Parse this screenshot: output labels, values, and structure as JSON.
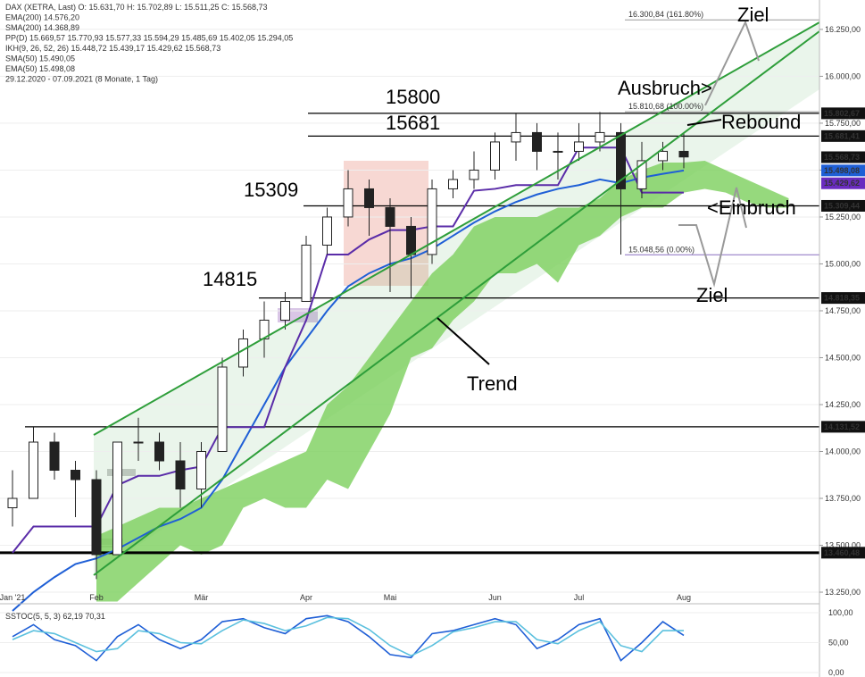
{
  "chart_data": [
    {
      "type": "candlestick",
      "grid": true,
      "header_lines": [
        {
          "text": "DAX (XETRA, Last)  O: 15.631,70  H: 15.702,89  L: 15.511,25  C: 15.568,73",
          "color": "#222"
        },
        {
          "text": "EMA(200)  14.576,20",
          "color": "#e8a0a0"
        },
        {
          "text": "SMA(200)  14.368,89",
          "color": "#e8a0b8"
        },
        {
          "text": "PP(D)  15.669,57  15.770,93  15.577,33  15.594,29  15.485,69  15.402,05  15.294,05",
          "color": "#bbb"
        },
        {
          "text": "IKH(9, 26, 52, 26)  15.448,72  15.439,17  15.429,62  15.568,73",
          "color": "#7a3fb0"
        },
        {
          "text": "SMA(50)  15.490,05",
          "color": "#9cc3e6"
        },
        {
          "text": "EMA(50)  15.498,08",
          "color": "#1f5fd6"
        },
        {
          "text": "29.12.2020 - 07.09.2021 (8 Monate, 1 Tag)",
          "color": "#555"
        }
      ],
      "categories": [
        "Jan '21",
        null,
        null,
        null,
        "Feb",
        null,
        null,
        null,
        null,
        "Mär",
        null,
        null,
        null,
        null,
        "Apr",
        null,
        null,
        null,
        "Mai",
        null,
        null,
        null,
        null,
        "Jun",
        null,
        null,
        null,
        "Jul",
        null,
        null,
        null,
        null,
        "Aug",
        null,
        null,
        null,
        null,
        null,
        null
      ],
      "open": [
        13700,
        13750,
        14050,
        13900,
        13850,
        13450,
        14050,
        14050,
        13950,
        13800,
        14000,
        14450,
        14600,
        14700,
        14800,
        15100,
        15250,
        15400,
        15300,
        15200,
        15050,
        15400,
        15450,
        15500,
        15650,
        15700,
        15600,
        15600,
        15650,
        15700,
        15400,
        15550,
        15600,
        null,
        null,
        null,
        null,
        null,
        null
      ],
      "high": [
        13900,
        14130,
        14100,
        13950,
        13900,
        14050,
        14180,
        14100,
        14050,
        14050,
        14500,
        14650,
        14800,
        14850,
        15150,
        15300,
        15500,
        15450,
        15350,
        15250,
        15450,
        15500,
        15600,
        15700,
        15800,
        15750,
        15700,
        15750,
        15810,
        15750,
        15650,
        15650,
        15700,
        null,
        null,
        null,
        null,
        null,
        null
      ],
      "low": [
        13600,
        13750,
        13850,
        13650,
        13320,
        13450,
        13950,
        13900,
        13700,
        13700,
        14000,
        14400,
        14500,
        14650,
        14800,
        15050,
        15200,
        15150,
        14850,
        14820,
        15000,
        15350,
        15400,
        15450,
        15550,
        15500,
        15450,
        15550,
        15600,
        15050,
        15350,
        15500,
        15510,
        null,
        null,
        null,
        null,
        null,
        null
      ],
      "close": [
        13750,
        14050,
        13900,
        13850,
        13450,
        14050,
        14050,
        13950,
        13800,
        14000,
        14450,
        14600,
        14700,
        14800,
        15100,
        15250,
        15400,
        15300,
        15200,
        15050,
        15400,
        15450,
        15500,
        15650,
        15700,
        15600,
        15600,
        15650,
        15700,
        15400,
        15550,
        15600,
        15570,
        null,
        null,
        null,
        null,
        null,
        null
      ],
      "lines": [
        {
          "color": "#1f5fd6",
          "values": [
            13150,
            13250,
            13330,
            13400,
            13430,
            13480,
            13540,
            13600,
            13640,
            13700,
            13850,
            14050,
            14250,
            14450,
            14600,
            14750,
            14880,
            14950,
            15000,
            15030,
            15080,
            15150,
            15220,
            15280,
            15330,
            15370,
            15400,
            15420,
            15450,
            15430,
            15460,
            15480,
            15498,
            null,
            null,
            null,
            null,
            null,
            null
          ]
        },
        {
          "color": "#5a2ca8",
          "values": [
            13460,
            13600,
            13600,
            13600,
            13600,
            13820,
            13870,
            13870,
            13900,
            13920,
            14130,
            14130,
            14130,
            14450,
            14700,
            15050,
            15050,
            15130,
            15180,
            15180,
            15200,
            15200,
            15390,
            15400,
            15420,
            15420,
            15420,
            15620,
            15620,
            15620,
            15380,
            15380,
            15380,
            null,
            null,
            null,
            null,
            null,
            null
          ]
        }
      ],
      "cloud": {
        "color": "#7ccf5c",
        "upper": [
          null,
          null,
          null,
          null,
          13550,
          13600,
          13650,
          13700,
          13700,
          13750,
          13800,
          13850,
          13900,
          13950,
          14000,
          14250,
          14350,
          14500,
          14650,
          14800,
          14950,
          15050,
          15200,
          15250,
          15250,
          15250,
          15300,
          15300,
          15350,
          15450,
          15500,
          15540,
          15540,
          15550,
          15500,
          15450,
          15400,
          15350,
          null
        ],
        "lower": [
          null,
          null,
          null,
          null,
          13200,
          13200,
          13300,
          13400,
          13500,
          13450,
          13500,
          13700,
          13750,
          13700,
          13700,
          13850,
          13800,
          14000,
          14200,
          14500,
          14550,
          14700,
          14800,
          14950,
          14950,
          15000,
          14900,
          15100,
          15150,
          15250,
          15300,
          15300,
          15380,
          15400,
          15380,
          15330,
          15300,
          15300,
          null
        ]
      },
      "levels": [
        {
          "value": 15802.67,
          "label": "15.802,67"
        },
        {
          "value": 15681.41,
          "label": "15.681,41"
        },
        {
          "value": 15309.44,
          "label": "15.309,44"
        },
        {
          "value": 14818.35,
          "label": "14.818,35"
        },
        {
          "value": 14131.52,
          "label": "14.131,52"
        },
        {
          "value": 13460.48,
          "label": "13.460,48"
        }
      ],
      "price_tags": [
        {
          "value": 15568.73,
          "label": "15.568,73",
          "color": "#111"
        },
        {
          "value": 15498.08,
          "label": "15.498,08",
          "color": "#1f5fd6"
        },
        {
          "value": 15429.62,
          "label": "15.429,62",
          "color": "#6a2cc0"
        }
      ],
      "fib": [
        {
          "value": 16300.84,
          "label": "16.300,84 (161.80%)"
        },
        {
          "value": 15810.68,
          "label": "15.810,68 (100.00%)"
        },
        {
          "value": 15048.56,
          "label": "15.048,56 (0.00%)"
        }
      ],
      "annotations": [
        "Ziel",
        "Ausbruch>",
        "Rebound",
        "<Einbruch",
        "Ziel",
        "Trend",
        "15800",
        "15681",
        "15309",
        "14815"
      ],
      "ylim": [
        13193,
        16321
      ],
      "yticks": [
        {
          "value": 13250,
          "label": "13.250,00"
        },
        {
          "value": 13500,
          "label": "13.500,00"
        },
        {
          "value": 13750,
          "label": "13.750,00"
        },
        {
          "value": 14000,
          "label": "14.000,00"
        },
        {
          "value": 14250,
          "label": "14.250,00"
        },
        {
          "value": 14500,
          "label": "14.500,00"
        },
        {
          "value": 14750,
          "label": "14.750,00"
        },
        {
          "value": 15000,
          "label": "15.000,00"
        },
        {
          "value": 15250,
          "label": "15.250,00"
        },
        {
          "value": 15500,
          "label": "15.500,00"
        },
        {
          "value": 15750,
          "label": "15.750,00"
        },
        {
          "value": 16000,
          "label": "16.000,00"
        },
        {
          "value": 16250,
          "label": "16.250,00"
        }
      ]
    },
    {
      "type": "line",
      "title": "SSTOC(5, 5, 3)  62,19  70,31",
      "series": [
        {
          "color": "#1f5fd6",
          "values": [
            60,
            80,
            55,
            45,
            20,
            60,
            80,
            55,
            40,
            55,
            85,
            90,
            75,
            65,
            90,
            95,
            85,
            60,
            30,
            25,
            65,
            70,
            80,
            90,
            80,
            40,
            55,
            80,
            90,
            20,
            50,
            85,
            62,
            null,
            null,
            null,
            null,
            null,
            null
          ]
        },
        {
          "color": "#5bc0de",
          "values": [
            55,
            70,
            65,
            50,
            35,
            40,
            70,
            65,
            50,
            48,
            70,
            88,
            82,
            70,
            78,
            92,
            90,
            72,
            45,
            28,
            45,
            68,
            75,
            85,
            85,
            55,
            48,
            70,
            85,
            45,
            35,
            70,
            70,
            null,
            null,
            null,
            null,
            null,
            null
          ]
        }
      ],
      "ylim": [
        0,
        100
      ],
      "yticks": [
        {
          "value": 0,
          "label": "0,00"
        },
        {
          "value": 50,
          "label": "50,00"
        },
        {
          "value": 100,
          "label": "100,00"
        }
      ]
    }
  ]
}
